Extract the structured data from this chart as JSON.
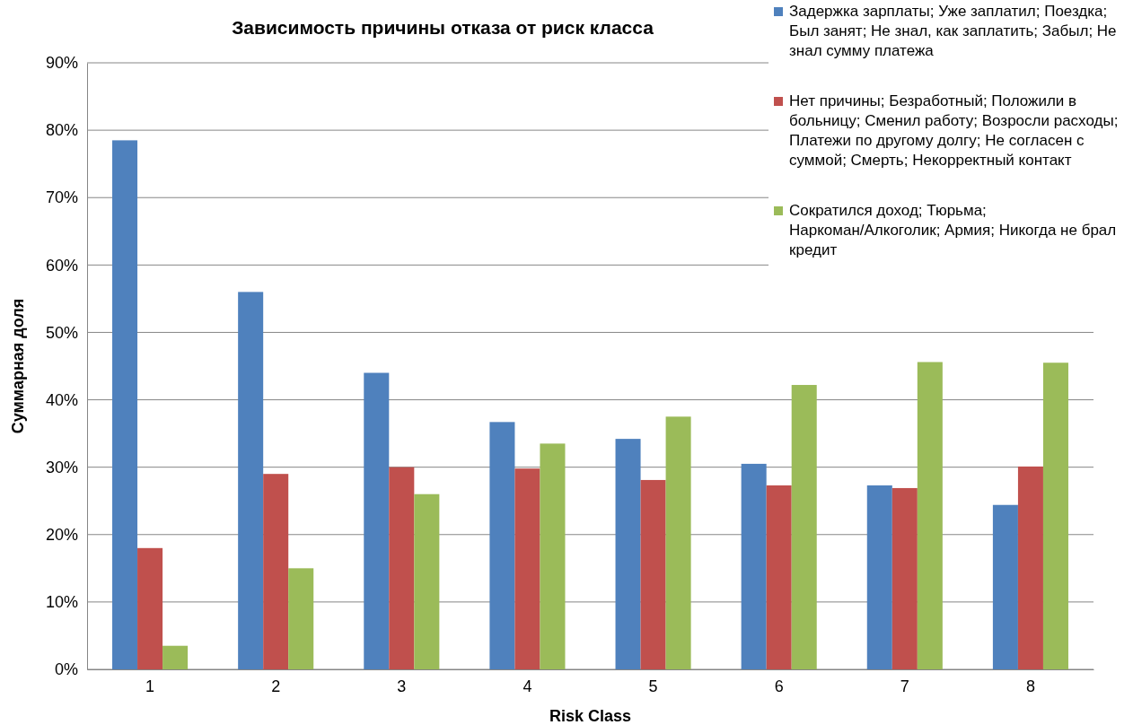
{
  "chart_data": {
    "type": "bar",
    "title": "Зависимость причины отказа от риск класса",
    "xlabel": "Risk Class",
    "ylabel": "Суммарная доля",
    "categories": [
      "1",
      "2",
      "3",
      "4",
      "5",
      "6",
      "7",
      "8"
    ],
    "series": [
      {
        "name": "Задержка зарплаты; Уже заплатил; Поездка; Был занят; Не знал, как заплатить; Забыл; Не знал сумму платежа",
        "color": "#4f81bd",
        "values": [
          78.5,
          56,
          44,
          36.7,
          34.2,
          30.5,
          27.3,
          24.4
        ]
      },
      {
        "name": "Нет причины; Безработный; Положили в больницу; Сменил работу; Возросли расходы; Платежи по другому долгу; Не согласен с суммой; Смерть; Некорректный контакт",
        "color": "#c0504d",
        "values": [
          18,
          29,
          30,
          29.8,
          28.1,
          27.3,
          26.9,
          30.1
        ]
      },
      {
        "name": "Сократился доход; Тюрьма; Наркоман/Алкоголик; Армия; Никогда не брал кредит",
        "color": "#9bbb59",
        "values": [
          3.5,
          15,
          26,
          33.5,
          37.5,
          42.2,
          45.6,
          45.5
        ]
      }
    ],
    "ylim": [
      0,
      90
    ],
    "yticks": [
      {
        "value": 0,
        "label": "0%"
      },
      {
        "value": 10,
        "label": "10%"
      },
      {
        "value": 20,
        "label": "20%"
      },
      {
        "value": 30,
        "label": "30%"
      },
      {
        "value": 40,
        "label": "40%"
      },
      {
        "value": 50,
        "label": "50%"
      },
      {
        "value": 60,
        "label": "60%"
      },
      {
        "value": 70,
        "label": "70%"
      },
      {
        "value": 80,
        "label": "80%"
      },
      {
        "value": 90,
        "label": "90%"
      }
    ],
    "grid": "y",
    "legend": "top right"
  }
}
